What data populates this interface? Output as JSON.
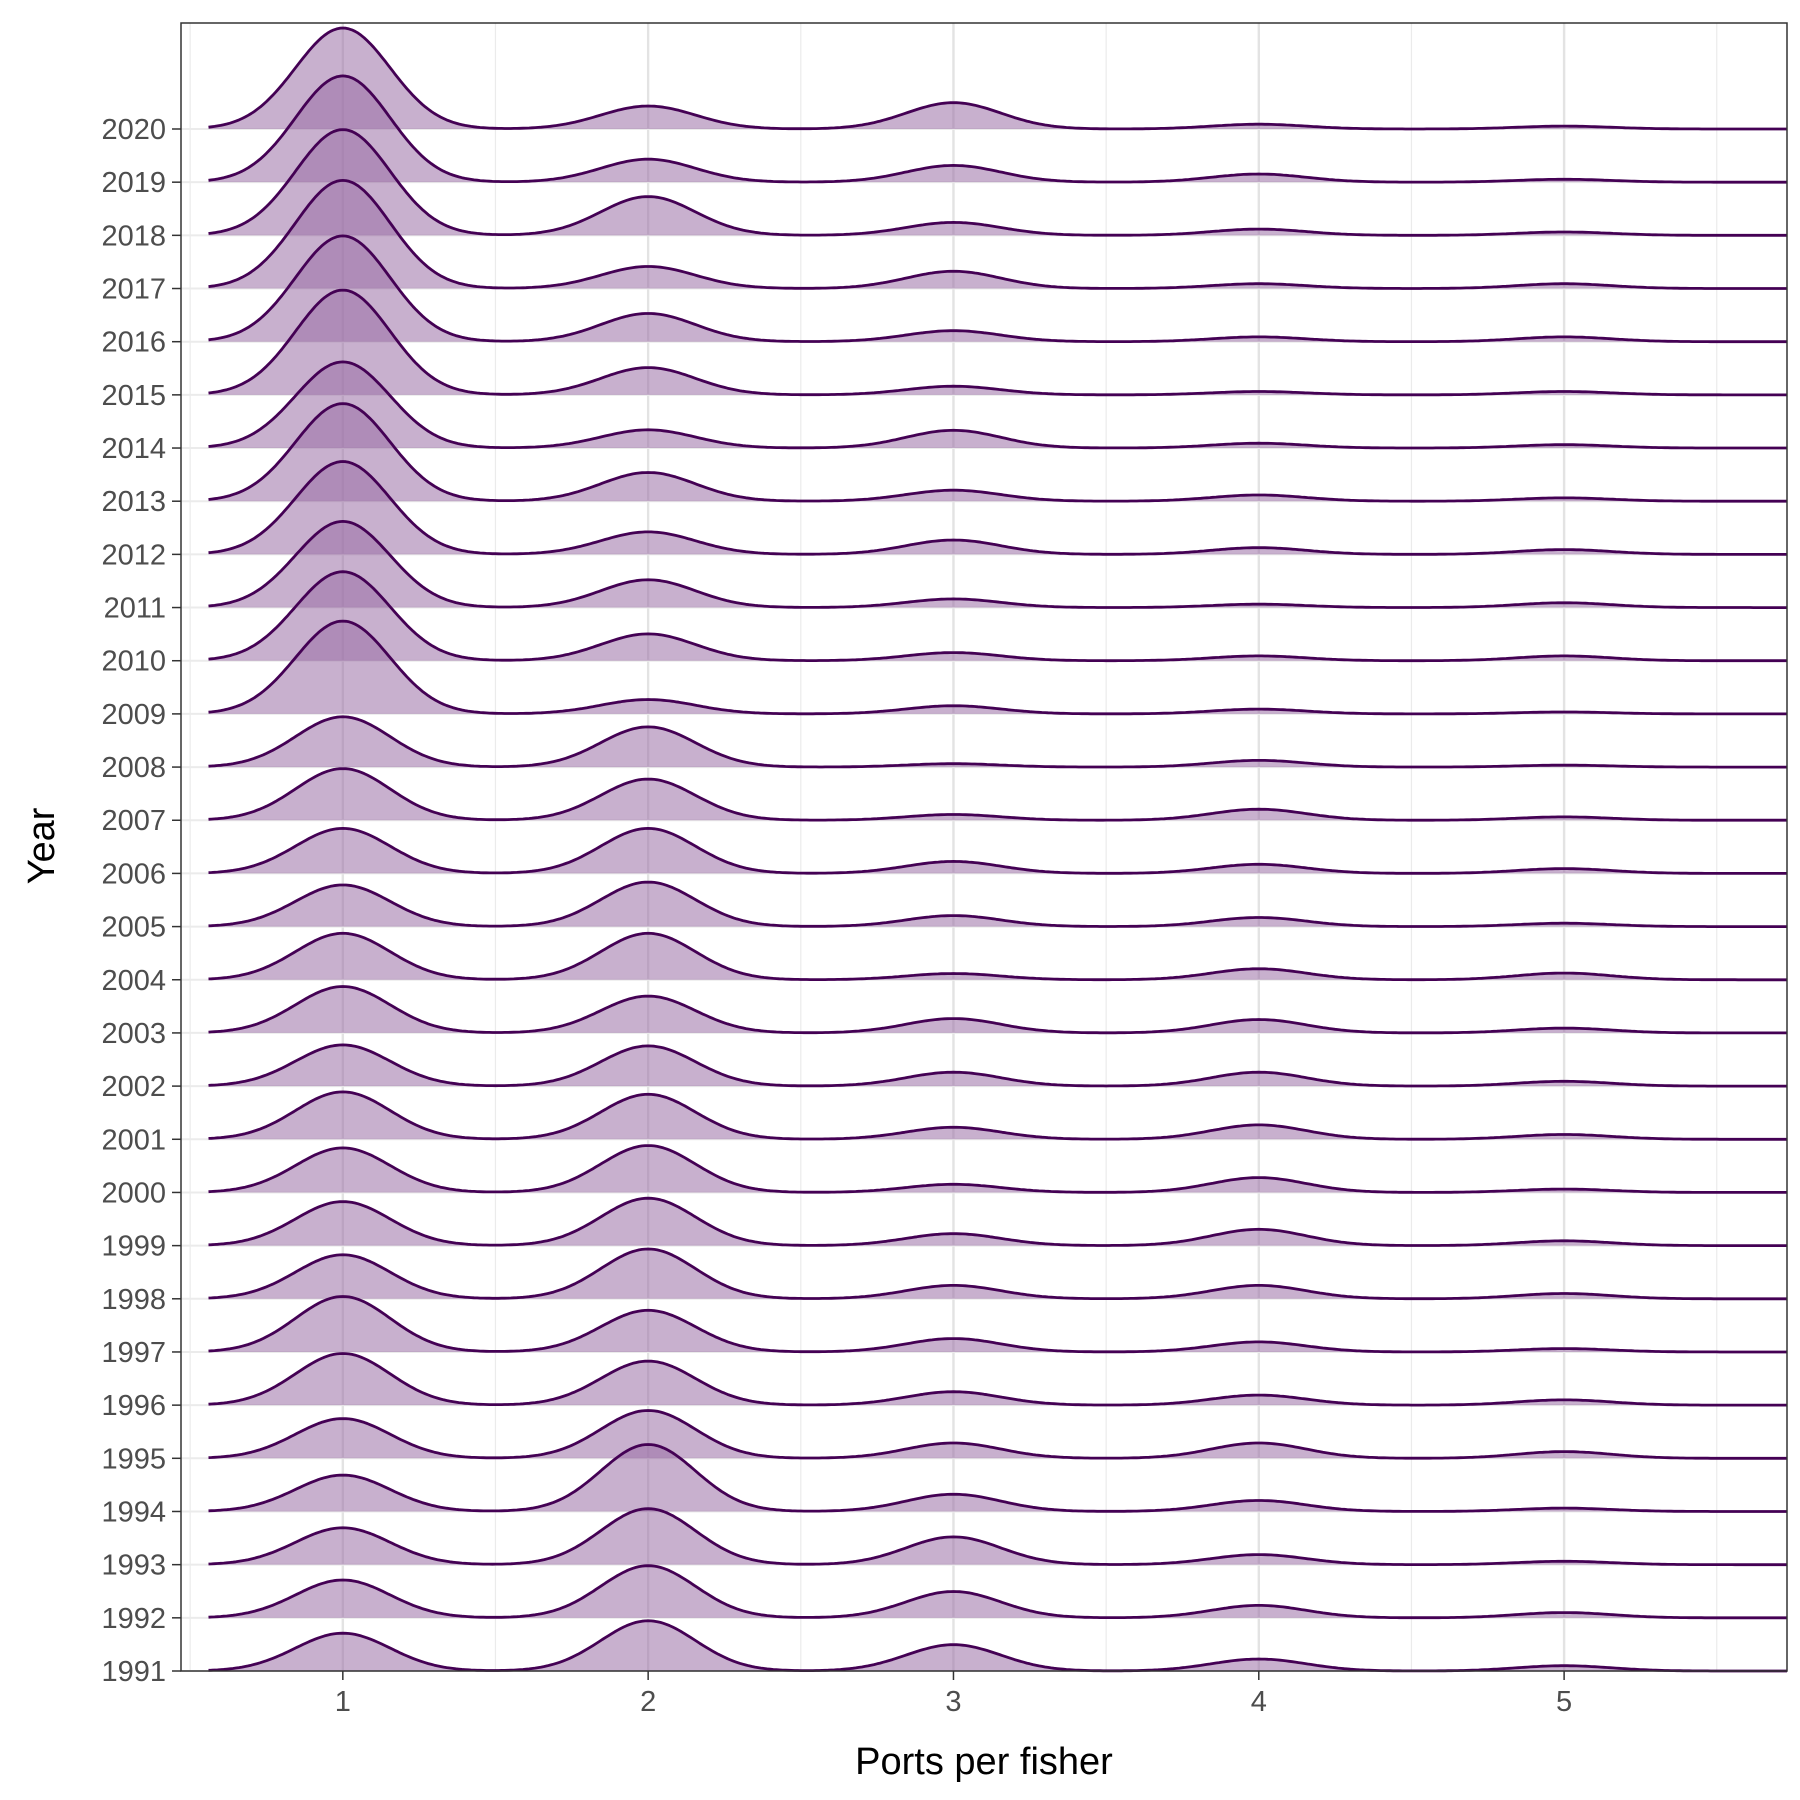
{
  "chart_data": {
    "type": "ridgeline",
    "xlabel": "Ports per fisher",
    "ylabel": "Year",
    "x_ticks": [
      1,
      2,
      3,
      4,
      5
    ],
    "xlim": [
      0.47,
      5.73
    ],
    "grid": true,
    "fill_color": "#9B6FA6",
    "fill_opacity": 0.55,
    "line_color": "#440154",
    "peak_width": 0.155,
    "series": [
      {
        "year": "1991",
        "peaks": [
          0.79,
          1.05,
          0.55,
          0.25,
          0.11
        ]
      },
      {
        "year": "1992",
        "peaks": [
          0.79,
          1.09,
          0.55,
          0.26,
          0.11
        ]
      },
      {
        "year": "1993",
        "peaks": [
          0.77,
          1.17,
          0.58,
          0.21,
          0.07
        ]
      },
      {
        "year": "1994",
        "peaks": [
          0.76,
          1.4,
          0.36,
          0.23,
          0.07
        ]
      },
      {
        "year": "1995",
        "peaks": [
          0.83,
          1.0,
          0.32,
          0.32,
          0.14
        ]
      },
      {
        "year": "1996",
        "peaks": [
          1.08,
          0.92,
          0.28,
          0.21,
          0.11
        ]
      },
      {
        "year": "1997",
        "peaks": [
          1.16,
          0.87,
          0.28,
          0.21,
          0.07
        ]
      },
      {
        "year": "1998",
        "peaks": [
          0.92,
          1.04,
          0.28,
          0.28,
          0.11
        ]
      },
      {
        "year": "1999",
        "peaks": [
          0.92,
          0.99,
          0.25,
          0.34,
          0.1
        ]
      },
      {
        "year": "2000",
        "peaks": [
          0.93,
          0.98,
          0.17,
          0.31,
          0.07
        ]
      },
      {
        "year": "2001",
        "peaks": [
          0.99,
          0.94,
          0.25,
          0.3,
          0.1
        ]
      },
      {
        "year": "2002",
        "peaks": [
          0.86,
          0.84,
          0.29,
          0.29,
          0.1
        ]
      },
      {
        "year": "2003",
        "peaks": [
          0.97,
          0.77,
          0.3,
          0.28,
          0.1
        ]
      },
      {
        "year": "2004",
        "peaks": [
          0.97,
          0.97,
          0.13,
          0.23,
          0.14
        ]
      },
      {
        "year": "2005",
        "peaks": [
          0.87,
          0.93,
          0.23,
          0.19,
          0.07
        ]
      },
      {
        "year": "2006",
        "peaks": [
          0.94,
          0.94,
          0.25,
          0.19,
          0.1
        ]
      },
      {
        "year": "2007",
        "peaks": [
          1.08,
          0.86,
          0.12,
          0.23,
          0.07
        ]
      },
      {
        "year": "2008",
        "peaks": [
          1.05,
          0.84,
          0.07,
          0.14,
          0.04
        ]
      },
      {
        "year": "2009",
        "peaks": [
          1.94,
          0.3,
          0.17,
          0.1,
          0.04
        ]
      },
      {
        "year": "2010",
        "peaks": [
          1.86,
          0.56,
          0.17,
          0.1,
          0.1
        ]
      },
      {
        "year": "2011",
        "peaks": [
          1.8,
          0.58,
          0.18,
          0.07,
          0.1
        ]
      },
      {
        "year": "2012",
        "peaks": [
          1.94,
          0.47,
          0.3,
          0.14,
          0.1
        ]
      },
      {
        "year": "2013",
        "peaks": [
          2.04,
          0.6,
          0.23,
          0.13,
          0.07
        ]
      },
      {
        "year": "2014",
        "peaks": [
          1.8,
          0.38,
          0.37,
          0.1,
          0.07
        ]
      },
      {
        "year": "2015",
        "peaks": [
          2.19,
          0.57,
          0.18,
          0.07,
          0.07
        ]
      },
      {
        "year": "2016",
        "peaks": [
          2.21,
          0.59,
          0.23,
          0.1,
          0.1
        ]
      },
      {
        "year": "2017",
        "peaks": [
          2.26,
          0.46,
          0.36,
          0.1,
          0.1
        ]
      },
      {
        "year": "2018",
        "peaks": [
          2.21,
          0.81,
          0.27,
          0.13,
          0.07
        ]
      },
      {
        "year": "2019",
        "peaks": [
          2.22,
          0.48,
          0.35,
          0.17,
          0.06
        ]
      },
      {
        "year": "2020",
        "peaks": [
          2.11,
          0.48,
          0.55,
          0.1,
          0.06
        ]
      }
    ]
  }
}
